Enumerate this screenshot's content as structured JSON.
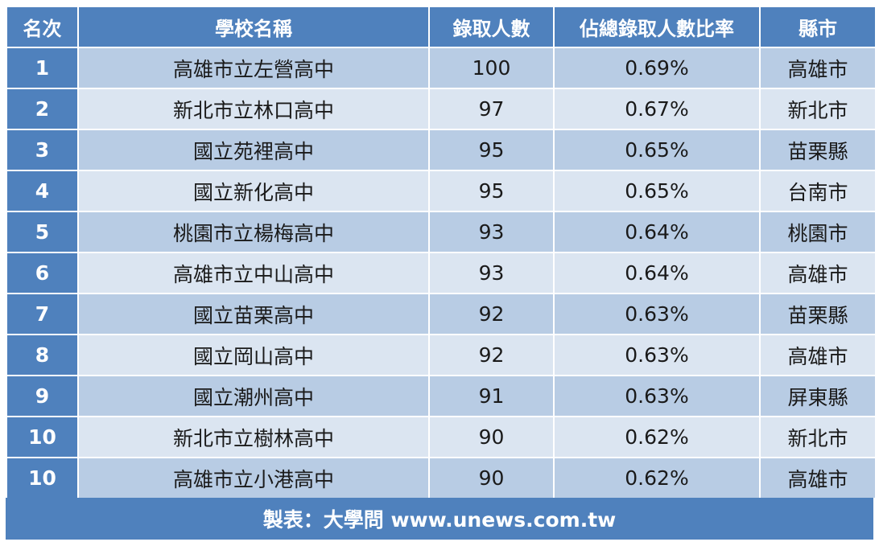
{
  "table": {
    "headers": [
      "名次",
      "學校名稱",
      "錄取人數",
      "佔總錄取人數比率",
      "縣市"
    ],
    "rows": [
      [
        "1",
        "高雄市立左營高中",
        "100",
        "0.69%",
        "高雄市"
      ],
      [
        "2",
        "新北市立林口高中",
        "97",
        "0.67%",
        "新北市"
      ],
      [
        "3",
        "國立苑裡高中",
        "95",
        "0.65%",
        "苗栗縣"
      ],
      [
        "4",
        "國立新化高中",
        "95",
        "0.65%",
        "台南市"
      ],
      [
        "5",
        "桃園市立楊梅高中",
        "93",
        "0.64%",
        "桃園市"
      ],
      [
        "6",
        "高雄市立中山高中",
        "93",
        "0.64%",
        "高雄市"
      ],
      [
        "7",
        "國立苗栗高中",
        "92",
        "0.63%",
        "苗栗縣"
      ],
      [
        "8",
        "國立岡山高中",
        "92",
        "0.63%",
        "高雄市"
      ],
      [
        "9",
        "國立潮州高中",
        "91",
        "0.63%",
        "屏東縣"
      ],
      [
        "10",
        "新北市立樹林高中",
        "90",
        "0.62%",
        "新北市"
      ],
      [
        "10",
        "高雄市立小港高中",
        "90",
        "0.62%",
        "高雄市"
      ]
    ]
  },
  "footer": {
    "source": "製表：大學問 www.unews.com.tw"
  },
  "colors": {
    "header_bg": "#4f81bd",
    "row_odd_bg": "#b8cce4",
    "row_even_bg": "#dbe5f1",
    "header_text": "#ffffff"
  }
}
